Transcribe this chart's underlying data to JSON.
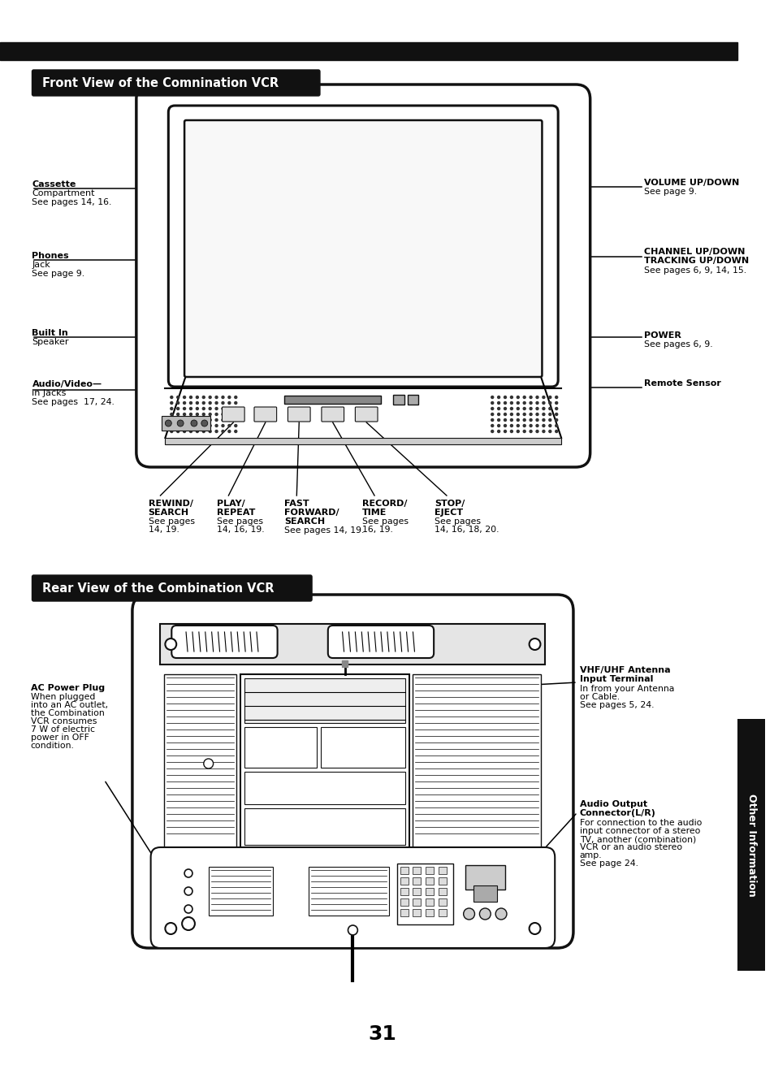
{
  "page_number": "31",
  "bg": "#ffffff",
  "dark": "#111111",
  "section1_title": "Front View of the Comnination VCR",
  "section2_title": "Rear View of the Combination VCR",
  "sidebar_label": "Other Information"
}
